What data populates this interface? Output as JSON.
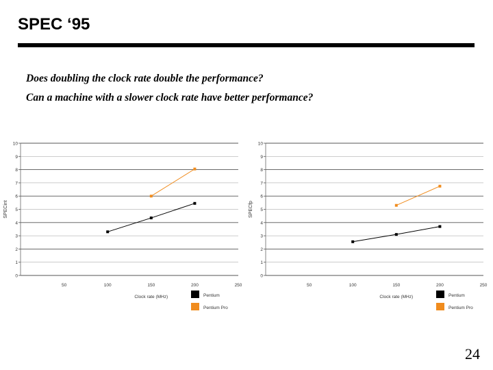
{
  "slide": {
    "title": "SPEC ‘95",
    "questions": [
      "Does doubling the clock rate double the performance?",
      "Can a machine with a slower clock rate have better performance?"
    ],
    "page_number": "24"
  },
  "chart_data": [
    {
      "type": "line",
      "xlabel": "Clock rate (MHz)",
      "ylabel": "SPECint",
      "xlim": [
        0,
        250
      ],
      "ylim": [
        0,
        10
      ],
      "x_ticks": [
        50,
        100,
        150,
        200,
        250
      ],
      "y_ticks": [
        0,
        1,
        2,
        3,
        4,
        5,
        6,
        7,
        8,
        9,
        10
      ],
      "grid": true,
      "legend_position": "bottom-right",
      "series": [
        {
          "name": "Pentium",
          "color": "#000000",
          "x": [
            100,
            150,
            200
          ],
          "y": [
            3.3,
            4.35,
            5.45
          ]
        },
        {
          "name": "Pentium Pro",
          "color": "#f08c1e",
          "x": [
            150,
            200
          ],
          "y": [
            6.0,
            8.05
          ]
        }
      ]
    },
    {
      "type": "line",
      "xlabel": "Clock rate (MHz)",
      "ylabel": "SPECfp",
      "xlim": [
        0,
        250
      ],
      "ylim": [
        0,
        10
      ],
      "x_ticks": [
        50,
        100,
        150,
        200,
        250
      ],
      "y_ticks": [
        0,
        1,
        2,
        3,
        4,
        5,
        6,
        7,
        8,
        9,
        10
      ],
      "grid": true,
      "legend_position": "bottom-right",
      "series": [
        {
          "name": "Pentium",
          "color": "#000000",
          "x": [
            100,
            150,
            200
          ],
          "y": [
            2.55,
            3.1,
            3.7
          ]
        },
        {
          "name": "Pentium Pro",
          "color": "#f08c1e",
          "x": [
            150,
            200
          ],
          "y": [
            5.3,
            6.75
          ]
        }
      ]
    }
  ]
}
